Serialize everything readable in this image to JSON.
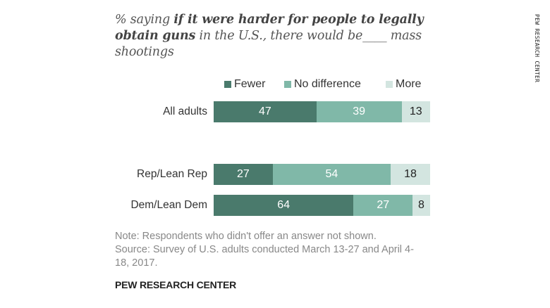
{
  "chart_data": {
    "type": "bar",
    "orientation": "horizontal",
    "stacked": true,
    "title_parts": [
      {
        "text": "% saying ",
        "bold": false
      },
      {
        "text": "if it were harder for people to legally obtain guns",
        "bold": true
      },
      {
        "text": " in the U.S., there would be____ mass shootings",
        "bold": false
      }
    ],
    "title": "% saying if it were harder for people to legally obtain guns in the U.S., there would be____ mass shootings",
    "categories": [
      "All adults",
      "Rep/Lean Rep",
      "Dem/Lean Dem"
    ],
    "series": [
      {
        "name": "Fewer",
        "color": "#4a7a6c",
        "label_color": "#ffffff",
        "values": [
          47,
          27,
          64
        ]
      },
      {
        "name": "No difference",
        "color": "#80b8a8",
        "label_color": "#ffffff",
        "values": [
          39,
          54,
          27
        ]
      },
      {
        "name": "More",
        "color": "#d3e5e0",
        "label_color": "#222222",
        "values": [
          13,
          18,
          8
        ]
      }
    ],
    "xlim": [
      0,
      100
    ],
    "grid": false,
    "legend_position": "top",
    "xlabel": "",
    "ylabel": ""
  },
  "note": "Note: Respondents who didn't offer an answer not shown.",
  "source": "Source: Survey of U.S. adults conducted March 13-27 and April 4-18, 2017.",
  "footer": "PEW RESEARCH CENTER",
  "side_brand": "PEW RESEARCH CENTER"
}
